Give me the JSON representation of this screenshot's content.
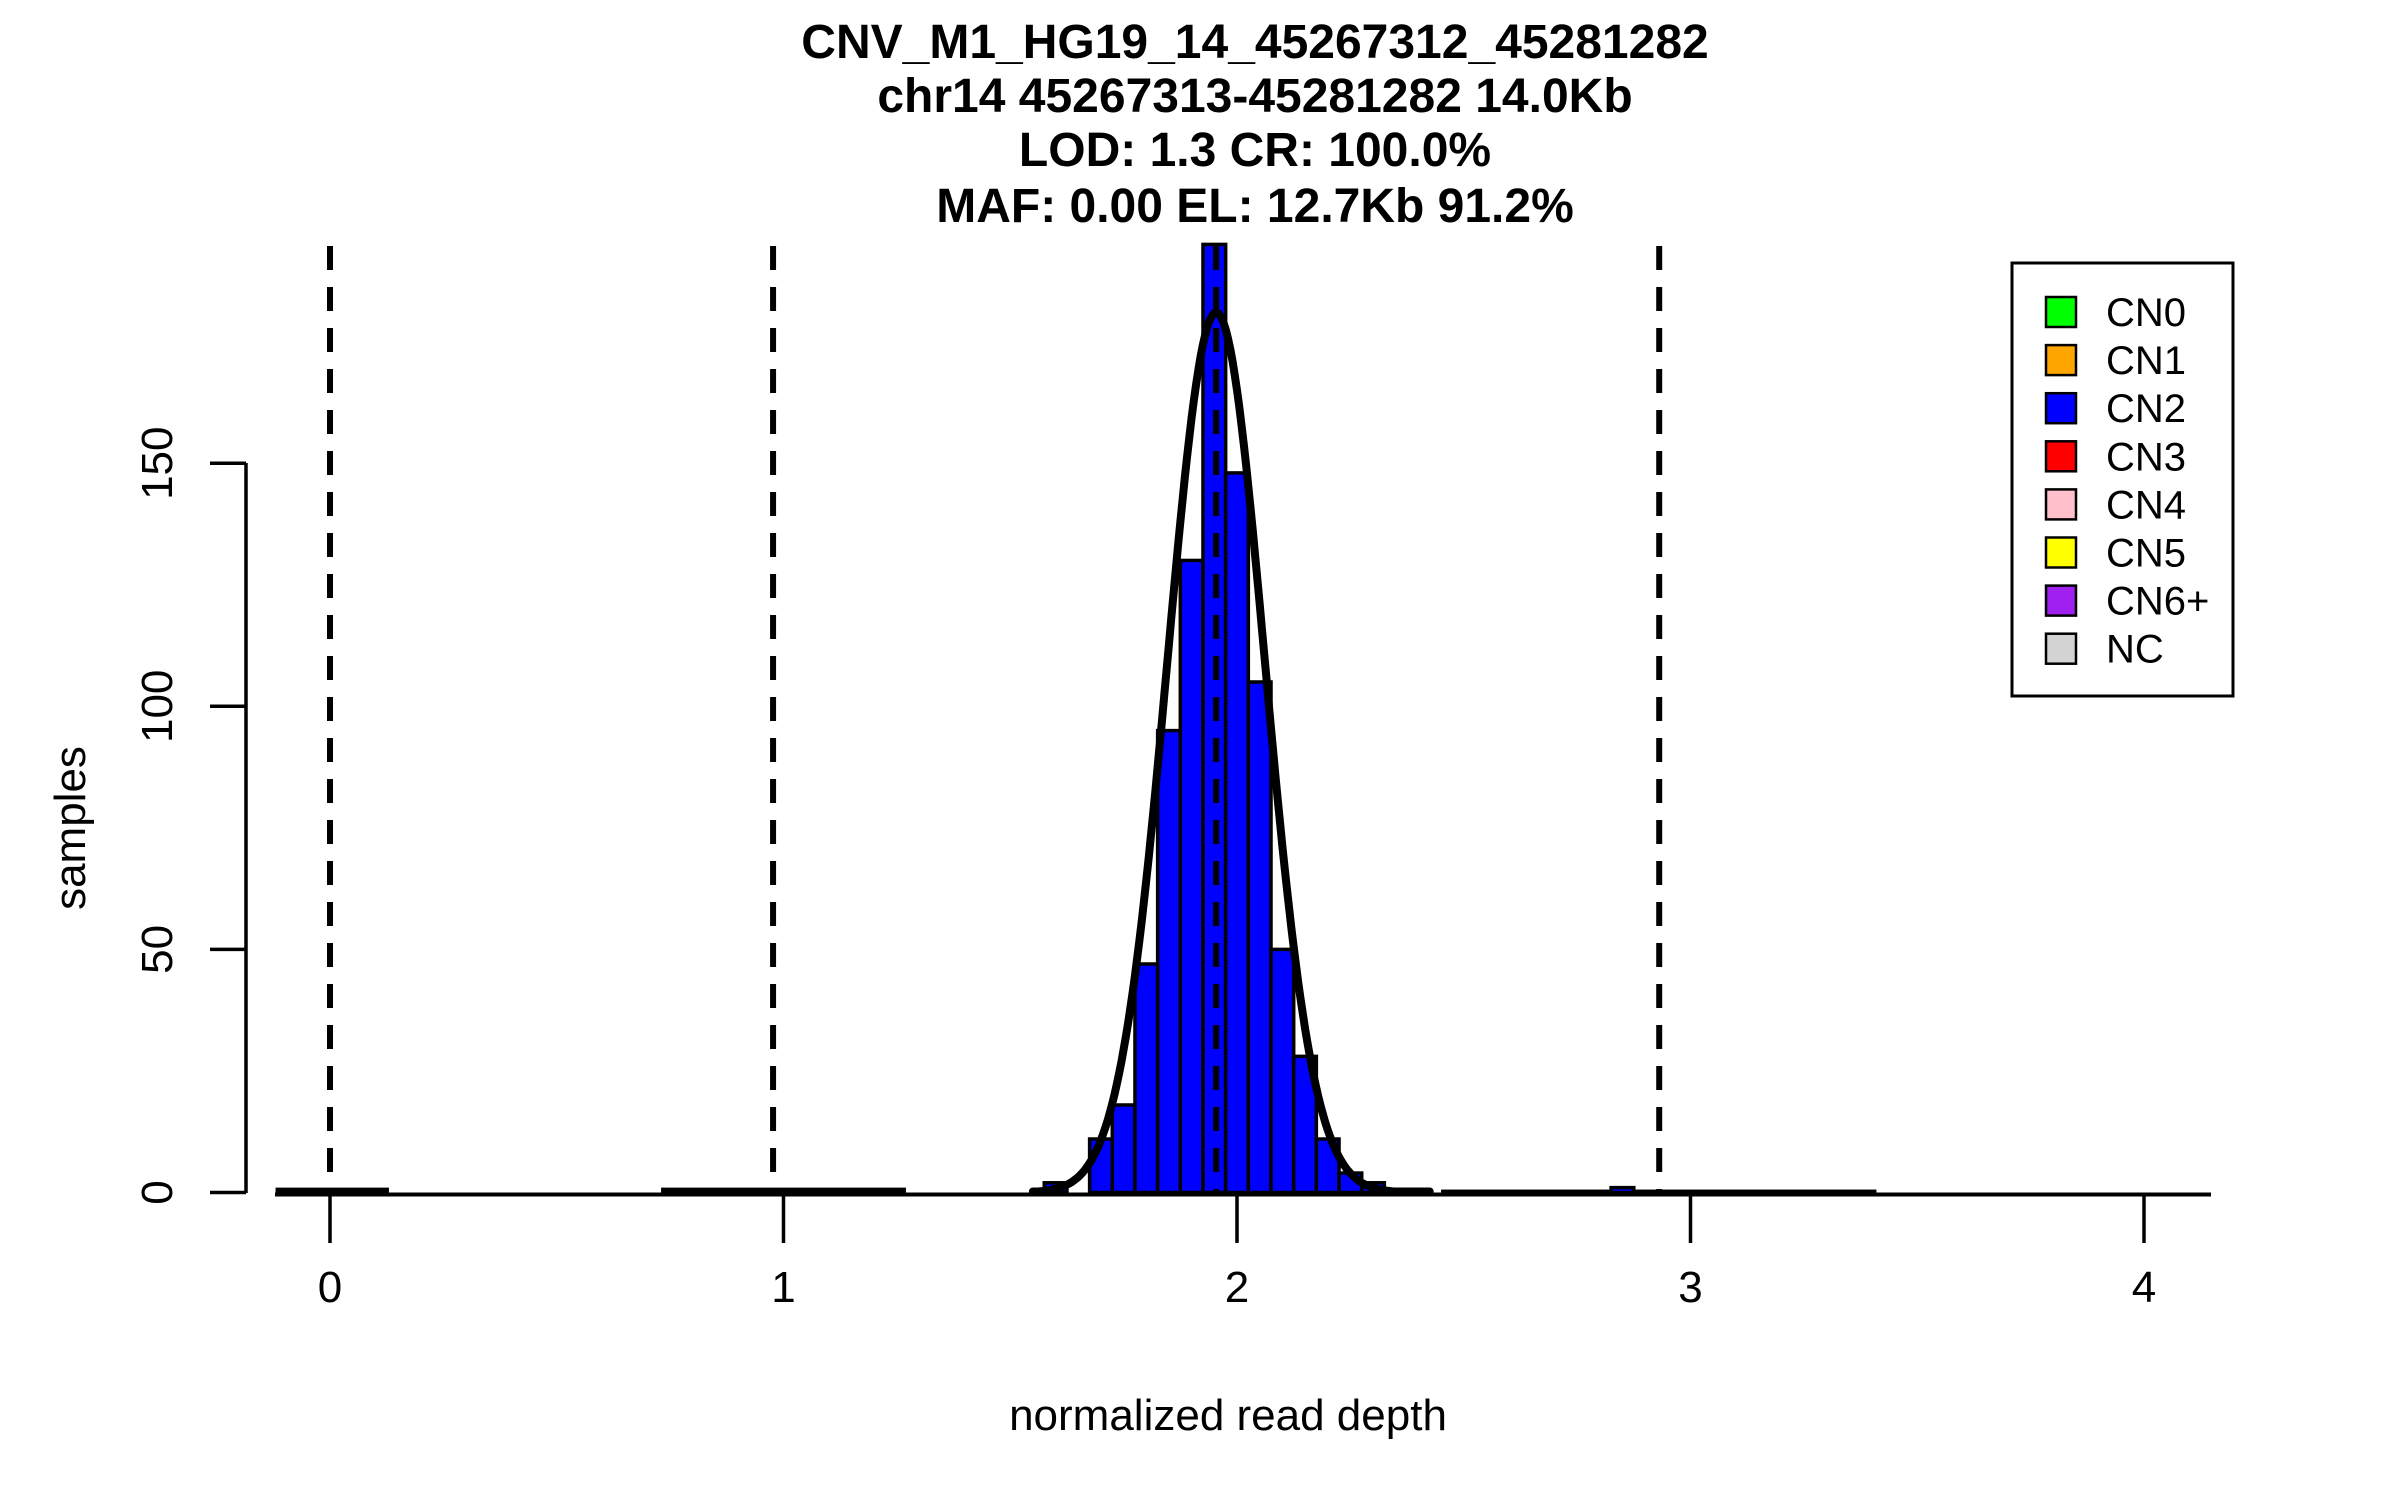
{
  "title": {
    "line1": "CNV_M1_HG19_14_45267312_45281282",
    "line2": "chr14 45267313-45281282 14.0Kb",
    "line3": "LOD: 1.3 CR: 100.0%",
    "line4": "MAF: 0.00 EL: 12.7Kb 91.2%"
  },
  "axes": {
    "x": {
      "label": "normalized read depth",
      "ticks": [
        0,
        1,
        2,
        3,
        4
      ],
      "range": [
        -0.12,
        4.15
      ]
    },
    "y": {
      "label": "samples",
      "ticks": [
        0,
        50,
        100,
        150
      ],
      "range": [
        0,
        203
      ]
    }
  },
  "legend": {
    "position": "top-right",
    "entries": [
      {
        "label": "CN0",
        "color": "#00FF00"
      },
      {
        "label": "CN1",
        "color": "#FFA500"
      },
      {
        "label": "CN2",
        "color": "#0000FF"
      },
      {
        "label": "CN3",
        "color": "#FF0000"
      },
      {
        "label": "CN4",
        "color": "#FFC0CB"
      },
      {
        "label": "CN5",
        "color": "#FFFF00"
      },
      {
        "label": "CN6+",
        "color": "#A020F0"
      },
      {
        "label": "NC",
        "color": "#D3D3D3"
      }
    ]
  },
  "chart_data": {
    "type": "bar",
    "subtype": "histogram",
    "title": "CNV_M1_HG19_14_45267312_45281282 / chr14 45267313-45281282 14.0Kb / LOD: 1.3 CR: 100.0% / MAF: 0.00 EL: 12.7Kb 91.2%",
    "xlabel": "normalized read depth",
    "ylabel": "samples",
    "xlim": [
      -0.12,
      4.15
    ],
    "ylim": [
      0,
      203
    ],
    "grid": false,
    "bar_color": "#0000FF",
    "bar_edge_color": "#000000",
    "bin_width": 0.05,
    "bins": [
      {
        "start": 1.575,
        "count": 2
      },
      {
        "start": 1.625,
        "count": 0
      },
      {
        "start": 1.675,
        "count": 11
      },
      {
        "start": 1.725,
        "count": 18
      },
      {
        "start": 1.775,
        "count": 47
      },
      {
        "start": 1.825,
        "count": 95
      },
      {
        "start": 1.875,
        "count": 130
      },
      {
        "start": 1.925,
        "count": 195
      },
      {
        "start": 1.975,
        "count": 148
      },
      {
        "start": 2.025,
        "count": 105
      },
      {
        "start": 2.075,
        "count": 50
      },
      {
        "start": 2.125,
        "count": 28
      },
      {
        "start": 2.175,
        "count": 11
      },
      {
        "start": 2.225,
        "count": 4
      },
      {
        "start": 2.275,
        "count": 2
      },
      {
        "start": 2.825,
        "count": 1
      }
    ],
    "zero_line_segments": [
      {
        "from": -0.12,
        "to": 0.13,
        "level": 0.8
      },
      {
        "from": 0.73,
        "to": 1.27,
        "level": 0.8
      },
      {
        "from": 2.45,
        "to": 3.41,
        "level": 0.4
      }
    ],
    "fit_curve": {
      "shape": "gaussian",
      "mean": 1.954,
      "sd": 0.107,
      "peak": 181,
      "color": "#000000"
    },
    "dashed_lines_x": [
      0,
      0.977,
      1.954,
      2.931
    ],
    "dashed_line_color": "#000000"
  }
}
